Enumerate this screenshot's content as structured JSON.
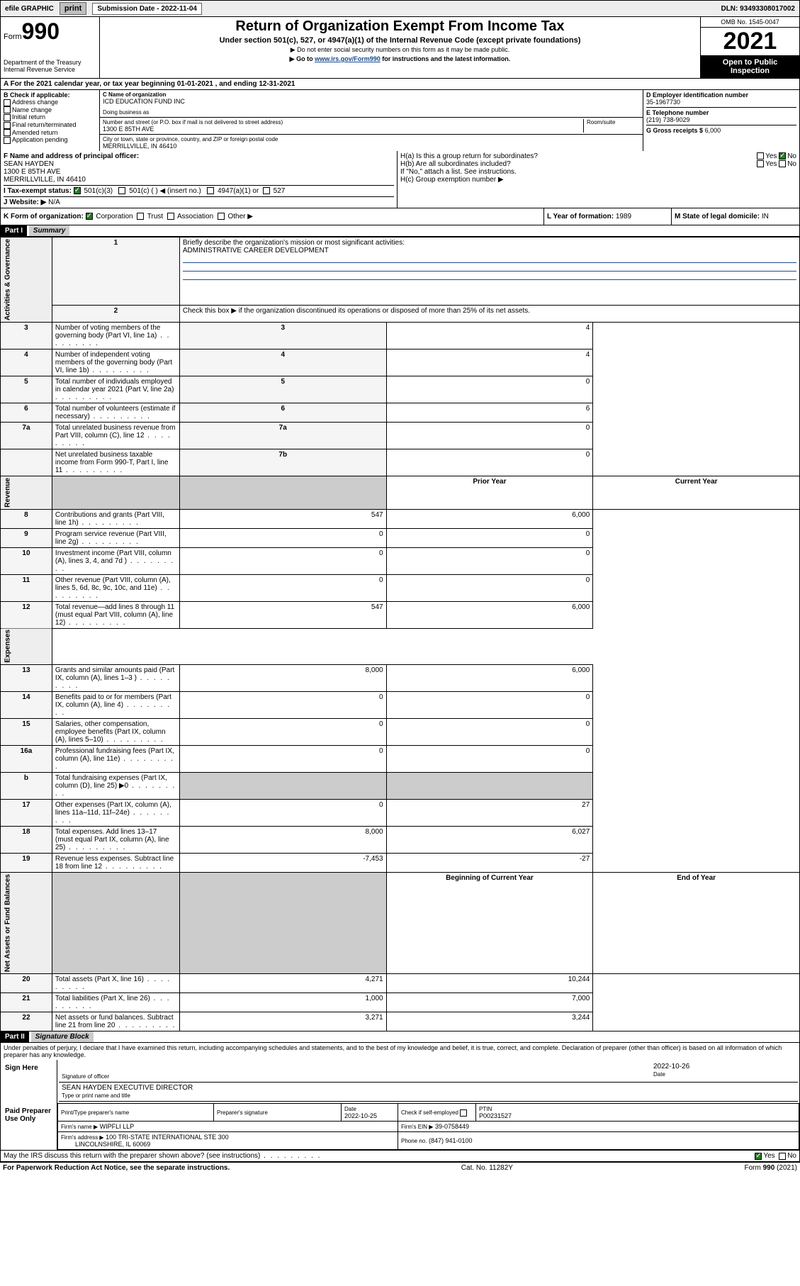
{
  "topbar": {
    "efile": "efile GRAPHIC",
    "print": "print",
    "sub_label": "Submission Date - 2022-11-04",
    "dln": "DLN: 93493308017002"
  },
  "header": {
    "form_word": "Form",
    "form_num": "990",
    "dept": "Department of the Treasury",
    "irs": "Internal Revenue Service",
    "title": "Return of Organization Exempt From Income Tax",
    "sub": "Under section 501(c), 527, or 4947(a)(1) of the Internal Revenue Code (except private foundations)",
    "note1": "Do not enter social security numbers on this form as it may be made public.",
    "note2_pre": "Go to ",
    "note2_link": "www.irs.gov/Form990",
    "note2_post": " for instructions and the latest information.",
    "omb": "OMB No. 1545-0047",
    "year": "2021",
    "open": "Open to Public Inspection"
  },
  "row_a": "A For the 2021 calendar year, or tax year beginning 01-01-2021   , and ending 12-31-2021",
  "box_b": {
    "title": "B Check if applicable:",
    "items": [
      "Address change",
      "Name change",
      "Initial return",
      "Final return/terminated",
      "Amended return",
      "Application pending"
    ]
  },
  "box_c": {
    "name_label": "C Name of organization",
    "name": "ICD EDUCATION FUND INC",
    "dba_label": "Doing business as",
    "addr_label": "Number and street (or P.O. box if mail is not delivered to street address)",
    "room_label": "Room/suite",
    "addr": "1300 E 85TH AVE",
    "city_label": "City or town, state or province, country, and ZIP or foreign postal code",
    "city": "MERRILLVILLE, IN  46410"
  },
  "box_d": {
    "label": "D Employer identification number",
    "val": "35-1967730"
  },
  "box_e": {
    "label": "E Telephone number",
    "val": "(219) 738-9029"
  },
  "box_g": {
    "label": "G Gross receipts $",
    "val": "6,000"
  },
  "box_f": {
    "label": "F  Name and address of principal officer:",
    "name": "SEAN HAYDEN",
    "addr1": "1300 E 85TH AVE",
    "addr2": "MERRILLVILLE, IN  46410"
  },
  "box_h": {
    "ha": "H(a)  Is this a group return for subordinates?",
    "hb": "H(b)  Are all subordinates included?",
    "hb_note": "If \"No,\" attach a list. See instructions.",
    "hc": "H(c)  Group exemption number ▶",
    "yes": "Yes",
    "no": "No"
  },
  "row_i": {
    "label": "I     Tax-exempt status:",
    "o1": "501(c)(3)",
    "o2": "501(c) (  ) ◀ (insert no.)",
    "o3": "4947(a)(1) or",
    "o4": "527"
  },
  "row_j": {
    "label": "J    Website: ▶",
    "val": "N/A"
  },
  "row_k": {
    "label": "K Form of organization:",
    "o1": "Corporation",
    "o2": "Trust",
    "o3": "Association",
    "o4": "Other ▶"
  },
  "row_l": {
    "label": "L Year of formation:",
    "val": "1989"
  },
  "row_m": {
    "label": "M State of legal domicile:",
    "val": "IN"
  },
  "part1": {
    "hdr": "Part I",
    "title": "Summary"
  },
  "summary": {
    "q1": "Briefly describe the organization's mission or most significant activities:",
    "q1_val": "ADMINISTRATIVE CAREER DEVELOPMENT",
    "q2": "Check this box ▶       if the organization discontinued its operations or disposed of more than 25% of its net assets.",
    "sections": {
      "gov": "Activities & Governance",
      "rev": "Revenue",
      "exp": "Expenses",
      "net": "Net Assets or Fund Balances"
    },
    "col_prior": "Prior Year",
    "col_curr": "Current Year",
    "col_beg": "Beginning of Current Year",
    "col_end": "End of Year",
    "rows_gov": [
      {
        "n": "3",
        "t": "Number of voting members of the governing body (Part VI, line 1a)",
        "box": "3",
        "v": "4"
      },
      {
        "n": "4",
        "t": "Number of independent voting members of the governing body (Part VI, line 1b)",
        "box": "4",
        "v": "4"
      },
      {
        "n": "5",
        "t": "Total number of individuals employed in calendar year 2021 (Part V, line 2a)",
        "box": "5",
        "v": "0"
      },
      {
        "n": "6",
        "t": "Total number of volunteers (estimate if necessary)",
        "box": "6",
        "v": "6"
      },
      {
        "n": "7a",
        "t": "Total unrelated business revenue from Part VIII, column (C), line 12",
        "box": "7a",
        "v": "0"
      },
      {
        "n": "",
        "t": "Net unrelated business taxable income from Form 990-T, Part I, line 11",
        "box": "7b",
        "v": "0"
      }
    ],
    "rows_rev": [
      {
        "n": "8",
        "t": "Contributions and grants (Part VIII, line 1h)",
        "p": "547",
        "c": "6,000"
      },
      {
        "n": "9",
        "t": "Program service revenue (Part VIII, line 2g)",
        "p": "0",
        "c": "0"
      },
      {
        "n": "10",
        "t": "Investment income (Part VIII, column (A), lines 3, 4, and 7d )",
        "p": "0",
        "c": "0"
      },
      {
        "n": "11",
        "t": "Other revenue (Part VIII, column (A), lines 5, 6d, 8c, 9c, 10c, and 11e)",
        "p": "0",
        "c": "0"
      },
      {
        "n": "12",
        "t": "Total revenue—add lines 8 through 11 (must equal Part VIII, column (A), line 12)",
        "p": "547",
        "c": "6,000"
      }
    ],
    "rows_exp": [
      {
        "n": "13",
        "t": "Grants and similar amounts paid (Part IX, column (A), lines 1–3 )",
        "p": "8,000",
        "c": "6,000"
      },
      {
        "n": "14",
        "t": "Benefits paid to or for members (Part IX, column (A), line 4)",
        "p": "0",
        "c": "0"
      },
      {
        "n": "15",
        "t": "Salaries, other compensation, employee benefits (Part IX, column (A), lines 5–10)",
        "p": "0",
        "c": "0"
      },
      {
        "n": "16a",
        "t": "Professional fundraising fees (Part IX, column (A), line 11e)",
        "p": "0",
        "c": "0"
      },
      {
        "n": "b",
        "t": "Total fundraising expenses (Part IX, column (D), line 25) ▶0",
        "p": "",
        "c": "",
        "shaded": true
      },
      {
        "n": "17",
        "t": "Other expenses (Part IX, column (A), lines 11a–11d, 11f–24e)",
        "p": "0",
        "c": "27"
      },
      {
        "n": "18",
        "t": "Total expenses. Add lines 13–17 (must equal Part IX, column (A), line 25)",
        "p": "8,000",
        "c": "6,027"
      },
      {
        "n": "19",
        "t": "Revenue less expenses. Subtract line 18 from line 12",
        "p": "-7,453",
        "c": "-27"
      }
    ],
    "rows_net": [
      {
        "n": "20",
        "t": "Total assets (Part X, line 16)",
        "p": "4,271",
        "c": "10,244"
      },
      {
        "n": "21",
        "t": "Total liabilities (Part X, line 26)",
        "p": "1,000",
        "c": "7,000"
      },
      {
        "n": "22",
        "t": "Net assets or fund balances. Subtract line 21 from line 20",
        "p": "3,271",
        "c": "3,244"
      }
    ]
  },
  "part2": {
    "hdr": "Part II",
    "title": "Signature Block"
  },
  "perjury": "Under penalties of perjury, I declare that I have examined this return, including accompanying schedules and statements, and to the best of my knowledge and belief, it is true, correct, and complete. Declaration of preparer (other than officer) is based on all information of which preparer has any knowledge.",
  "sign": {
    "here": "Sign Here",
    "sig_label": "Signature of officer",
    "date_label": "Date",
    "date": "2022-10-26",
    "name": "SEAN HAYDEN  EXECUTIVE DIRECTOR",
    "name_label": "Type or print name and title"
  },
  "prep": {
    "here": "Paid Preparer Use Only",
    "c1": "Print/Type preparer's name",
    "c2": "Preparer's signature",
    "c3": "Date",
    "c3v": "2022-10-25",
    "c4": "Check        if self-employed",
    "c5": "PTIN",
    "c5v": "P00231527",
    "firm_label": "Firm's name    ▶",
    "firm": "WIPFLI LLP",
    "ein_label": "Firm's EIN ▶",
    "ein": "39-0758449",
    "addr_label": "Firm's address ▶",
    "addr1": "100 TRI-STATE INTERNATIONAL STE 300",
    "addr2": "LINCOLNSHIRE, IL  60069",
    "phone_label": "Phone no.",
    "phone": "(847) 941-0100"
  },
  "may_irs": "May the IRS discuss this return with the preparer shown above? (see instructions)",
  "footer": {
    "left": "For Paperwork Reduction Act Notice, see the separate instructions.",
    "mid": "Cat. No. 11282Y",
    "right": "Form 990 (2021)"
  }
}
